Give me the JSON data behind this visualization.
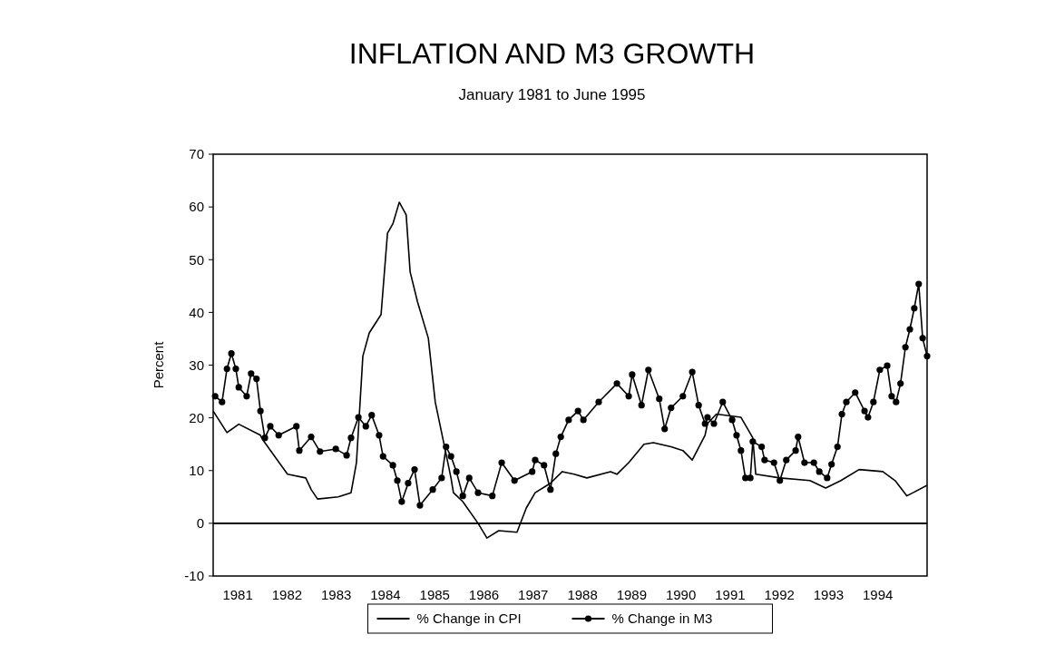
{
  "chart_data": {
    "type": "line",
    "title": "INFLATION AND M3 GROWTH",
    "subtitle": "January 1981 to June 1995",
    "ylabel": "Percent",
    "xlim": [
      1981,
      1995.5
    ],
    "xticks": [
      {
        "value": 1981.5,
        "label": "1981"
      },
      {
        "value": 1982.5,
        "label": "1982"
      },
      {
        "value": 1983.5,
        "label": "1983"
      },
      {
        "value": 1984.5,
        "label": "1984"
      },
      {
        "value": 1985.5,
        "label": "1985"
      },
      {
        "value": 1986.5,
        "label": "1986"
      },
      {
        "value": 1987.5,
        "label": "1987"
      },
      {
        "value": 1988.5,
        "label": "1988"
      },
      {
        "value": 1989.5,
        "label": "1989"
      },
      {
        "value": 1990.5,
        "label": "1990"
      },
      {
        "value": 1991.5,
        "label": "1991"
      },
      {
        "value": 1992.5,
        "label": "1992"
      },
      {
        "value": 1993.5,
        "label": "1993"
      },
      {
        "value": 1994.5,
        "label": "1994"
      }
    ],
    "ylim": [
      -10,
      70
    ],
    "yticks": [
      -10,
      0,
      10,
      20,
      30,
      40,
      50,
      60,
      70
    ],
    "grid": false,
    "legend": "bottom",
    "ref_lines": [
      {
        "axis": "y",
        "value": 0,
        "color": "#000000"
      }
    ],
    "series": [
      {
        "name": "% Change in CPI",
        "color": "#000000",
        "marker": "none",
        "x": [
          1981,
          1981.28,
          1981.52,
          1981.96,
          1982.01,
          1982.51,
          1982.88,
          1982.99,
          1983.12,
          1983.54,
          1983.8,
          1983.91,
          1984.04,
          1984.17,
          1984.41,
          1984.54,
          1984.65,
          1984.78,
          1984.92,
          1985,
          1985.15,
          1985.37,
          1985.51,
          1985.7,
          1985.83,
          1985.88,
          1986.07,
          1986.38,
          1986.56,
          1986.8,
          1987.17,
          1987.36,
          1987.54,
          1987.85,
          1988.09,
          1988.33,
          1988.59,
          1989.07,
          1989.2,
          1989.44,
          1989.75,
          1989.94,
          1990.3,
          1990.54,
          1990.73,
          1990.99,
          1991.04,
          1991.22,
          1991.72,
          1991.96,
          1992.02,
          1992.51,
          1993.12,
          1993.44,
          1993.75,
          1994.12,
          1994.6,
          1994.85,
          1995.09,
          1995.5
        ],
        "values": [
          21.3,
          17.2,
          18.8,
          16.7,
          15.8,
          9.3,
          8.6,
          6.4,
          4.6,
          5,
          5.8,
          11.5,
          31.7,
          36.1,
          39.6,
          55,
          56.8,
          60.9,
          58.5,
          47.7,
          42,
          35.1,
          23,
          14.5,
          8.6,
          5.8,
          4.1,
          0,
          -2.8,
          -1.4,
          -1.7,
          2.9,
          5.8,
          7.6,
          9.8,
          9.3,
          8.6,
          9.8,
          9.3,
          11.5,
          15,
          15.3,
          14.5,
          13.8,
          12,
          16.7,
          18.9,
          20.7,
          20.1,
          16.2,
          9.3,
          8.6,
          8.1,
          6.7,
          8.1,
          10.2,
          9.8,
          8.1,
          5.2,
          7.2
        ]
      },
      {
        "name": "% Change in M3",
        "color": "#000000",
        "marker": "circle",
        "x": [
          1981.04,
          1981.18,
          1981.28,
          1981.37,
          1981.46,
          1981.52,
          1981.68,
          1981.77,
          1981.88,
          1981.96,
          1982.05,
          1982.16,
          1982.33,
          1982.69,
          1982.75,
          1982.99,
          1983.17,
          1983.49,
          1983.71,
          1983.8,
          1983.95,
          1984.1,
          1984.22,
          1984.37,
          1984.45,
          1984.65,
          1984.74,
          1984.83,
          1984.96,
          1985.09,
          1985.2,
          1985.46,
          1985.64,
          1985.73,
          1985.83,
          1985.94,
          1986.07,
          1986.2,
          1986.38,
          1986.67,
          1986.86,
          1987.12,
          1987.48,
          1987.54,
          1987.72,
          1987.85,
          1987.96,
          1988.06,
          1988.22,
          1988.41,
          1988.52,
          1988.83,
          1989.2,
          1989.44,
          1989.51,
          1989.7,
          1989.84,
          1990.06,
          1990.17,
          1990.3,
          1990.54,
          1990.73,
          1990.86,
          1990.99,
          1991.04,
          1991.17,
          1991.35,
          1991.54,
          1991.63,
          1991.72,
          1991.81,
          1991.91,
          1991.96,
          1992.14,
          1992.2,
          1992.39,
          1992.51,
          1992.64,
          1992.83,
          1992.88,
          1993.01,
          1993.2,
          1993.31,
          1993.47,
          1993.56,
          1993.68,
          1993.77,
          1993.86,
          1994.04,
          1994.23,
          1994.3,
          1994.41,
          1994.54,
          1994.69,
          1994.78,
          1994.87,
          1994.96,
          1995.06,
          1995.15,
          1995.24,
          1995.33,
          1995.41,
          1995.5
        ],
        "values": [
          24.1,
          23,
          29.3,
          32.2,
          29.3,
          25.8,
          24.1,
          28.4,
          27.4,
          21.3,
          16.2,
          18.4,
          16.7,
          18.4,
          13.8,
          16.4,
          13.6,
          14.1,
          12.9,
          16.2,
          20.1,
          18.4,
          20.5,
          16.7,
          12.7,
          11,
          8.1,
          4.1,
          7.6,
          10.2,
          3.4,
          6.4,
          8.6,
          14.5,
          12.7,
          9.8,
          5.2,
          8.6,
          5.8,
          5.2,
          11.5,
          8.1,
          9.8,
          12,
          11,
          6.4,
          13.2,
          16.4,
          19.6,
          21.3,
          19.6,
          23,
          26.5,
          24.1,
          28.2,
          22.4,
          29.1,
          23.6,
          17.9,
          21.9,
          24.1,
          28.7,
          22.4,
          18.9,
          20.1,
          18.9,
          23,
          19.6,
          16.7,
          13.8,
          8.6,
          8.6,
          15.5,
          14.5,
          12,
          11.5,
          8.1,
          12,
          13.8,
          16.4,
          11.5,
          11.5,
          9.8,
          8.6,
          11.2,
          14.5,
          20.7,
          23,
          24.8,
          21.3,
          20.1,
          23,
          29.1,
          29.9,
          24.1,
          23,
          26.5,
          33.4,
          36.8,
          40.8,
          45.4,
          35.1,
          31.7
        ]
      }
    ]
  }
}
